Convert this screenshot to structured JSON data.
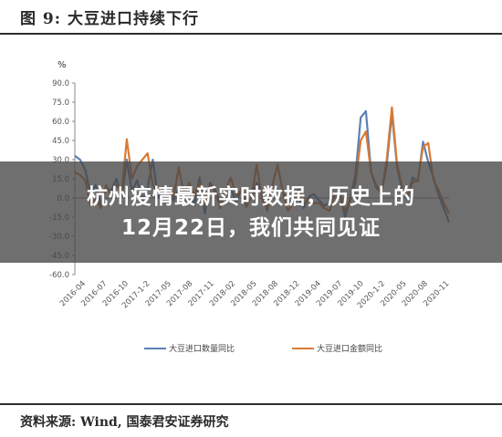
{
  "figure": {
    "title": "图 9:  大豆进口持续下行",
    "source": "资料来源: Wind, 国泰君安证券研究"
  },
  "overlay": {
    "line1": "杭州疫情最新实时数据，历史上的",
    "line2": "12月22日，我们共同见证"
  },
  "colors": {
    "volume": "#5b7fb6",
    "value": "#d97a34",
    "overlay_bg": "#464646"
  },
  "chart_data": {
    "type": "line",
    "ylabel": "%",
    "ylim": [
      -60,
      90
    ],
    "yticks": [
      "90.0",
      "75.0",
      "60.0",
      "45.0",
      "30.0",
      "15.0",
      "0.0",
      "-15.0",
      "-30.0",
      "-45.0",
      "-60.0"
    ],
    "ytick_values": [
      90,
      75,
      60,
      45,
      30,
      15,
      0,
      -15,
      -30,
      -45,
      -60
    ],
    "xtick_labels": [
      "2016-04",
      "2016-07",
      "2016-10",
      "2017-1-2",
      "2017-05",
      "2017-08",
      "2017-11",
      "2018-02",
      "2018-05",
      "2018-08",
      "2018-12",
      "2019-04",
      "2019-07",
      "2019-10",
      "2020-1-2",
      "2020-05",
      "2020-08",
      "2020-11"
    ],
    "grid": false,
    "legend_position": "bottom",
    "series": [
      {
        "name": "大豆进口数量同比",
        "color": "#5b7fb6",
        "values": [
          33,
          30,
          22,
          3,
          10,
          -5,
          8,
          6,
          15,
          0,
          30,
          5,
          14,
          -2,
          8,
          30,
          0,
          5,
          4,
          -2,
          8,
          -5,
          6,
          -6,
          16,
          -12,
          12,
          6,
          -3,
          -4,
          8,
          -4,
          7,
          -4,
          0,
          12,
          3,
          -10,
          9,
          5,
          5,
          -3,
          -2,
          3,
          -8,
          1,
          3,
          -2,
          -6,
          -4,
          3,
          3,
          -15,
          0,
          18,
          63,
          68,
          20,
          8,
          4,
          26,
          66,
          24,
          5,
          0,
          16,
          13,
          44,
          28,
          16,
          2,
          -8,
          -19
        ]
      },
      {
        "name": "大豆进口金额同比",
        "color": "#d97a34",
        "values": [
          20,
          18,
          14,
          -6,
          0,
          -8,
          10,
          2,
          10,
          4,
          46,
          15,
          25,
          30,
          35,
          10,
          4,
          8,
          5,
          1,
          24,
          3,
          12,
          2,
          12,
          -6,
          10,
          5,
          -8,
          6,
          16,
          2,
          6,
          -7,
          1,
          26,
          -1,
          -9,
          10,
          26,
          5,
          -10,
          -4,
          7,
          -5,
          0,
          -4,
          -4,
          -8,
          -10,
          2,
          4,
          -10,
          -2,
          12,
          45,
          52,
          20,
          10,
          4,
          30,
          71,
          26,
          8,
          2,
          12,
          14,
          40,
          43,
          14,
          6,
          -4,
          -12
        ]
      }
    ]
  }
}
